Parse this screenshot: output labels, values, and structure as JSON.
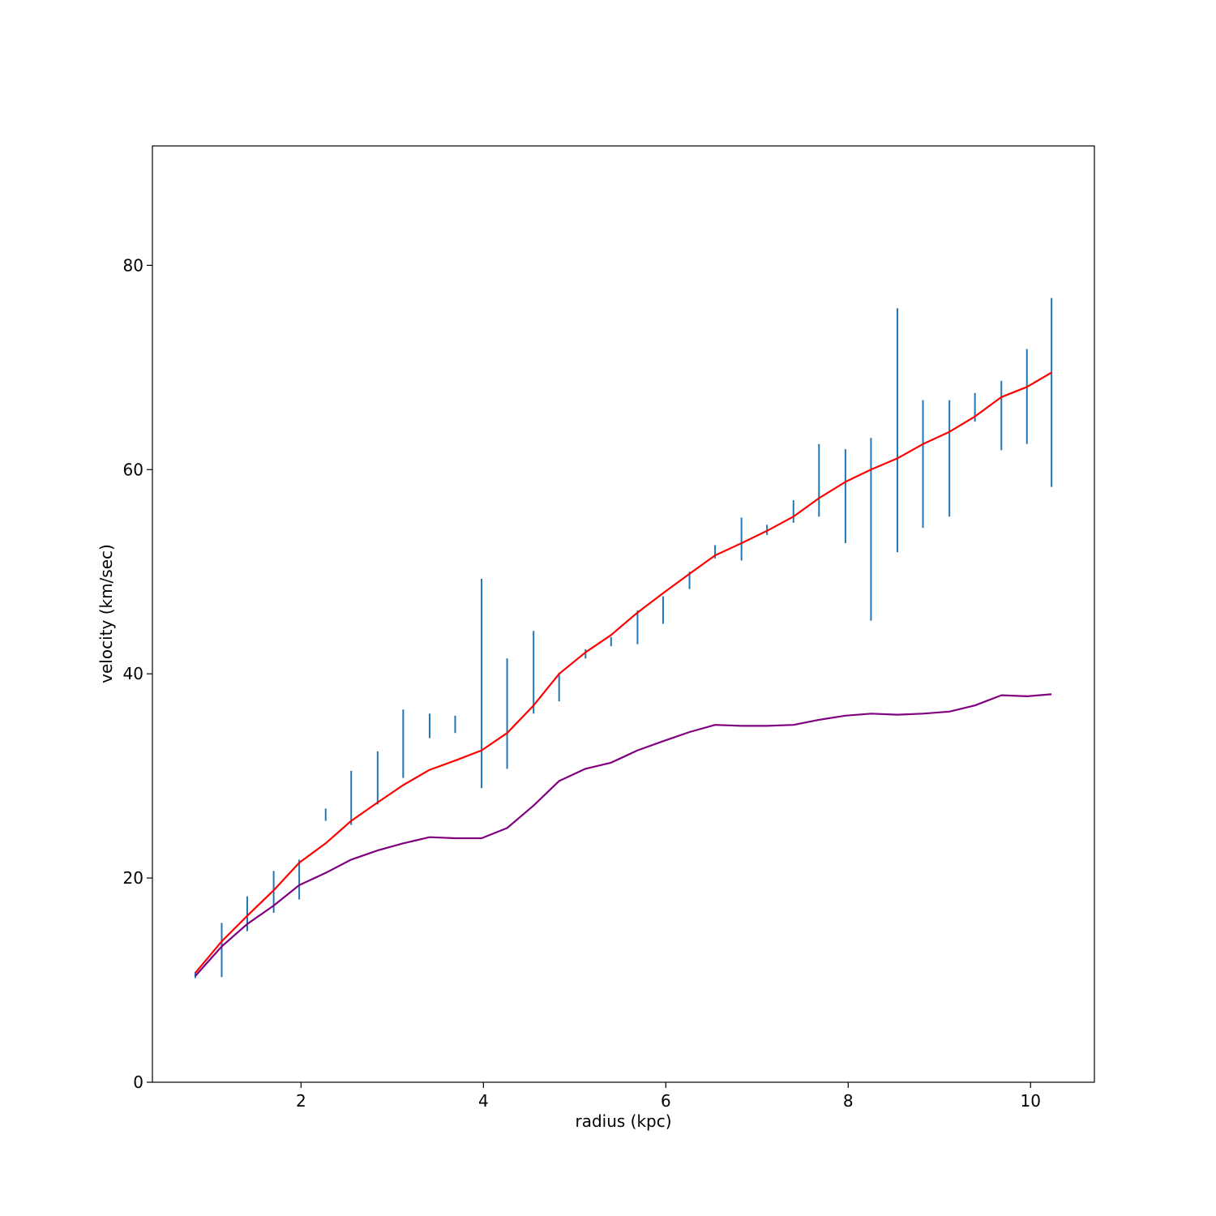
{
  "chart_data": {
    "type": "line",
    "xlabel": "radius (kpc)",
    "ylabel": "velocity (km/sec)",
    "xlim": [
      0.37,
      10.7
    ],
    "ylim": [
      0,
      91.7
    ],
    "xticks": [
      2,
      4,
      6,
      8,
      10
    ],
    "yticks": [
      0,
      20,
      40,
      60,
      80
    ],
    "grid": false,
    "colors": {
      "errorbars": "#1f77b4",
      "model": "#ff0000",
      "baryonic": "#800080",
      "axes": "#000000"
    },
    "errorbars": [
      {
        "x": 0.84,
        "low": 10.2,
        "high": 10.8
      },
      {
        "x": 1.13,
        "low": 10.3,
        "high": 15.6
      },
      {
        "x": 1.41,
        "low": 14.8,
        "high": 18.2
      },
      {
        "x": 1.7,
        "low": 16.6,
        "high": 20.7
      },
      {
        "x": 1.98,
        "low": 17.9,
        "high": 21.8
      },
      {
        "x": 2.27,
        "low": 25.6,
        "high": 26.8
      },
      {
        "x": 2.55,
        "low": 25.2,
        "high": 30.5
      },
      {
        "x": 2.84,
        "low": 27.2,
        "high": 32.4
      },
      {
        "x": 3.12,
        "low": 29.8,
        "high": 36.5
      },
      {
        "x": 3.41,
        "low": 33.7,
        "high": 36.1
      },
      {
        "x": 3.69,
        "low": 34.2,
        "high": 35.9
      },
      {
        "x": 3.98,
        "low": 28.8,
        "high": 49.3
      },
      {
        "x": 4.26,
        "low": 30.7,
        "high": 41.5
      },
      {
        "x": 4.55,
        "low": 36.1,
        "high": 44.2
      },
      {
        "x": 4.83,
        "low": 37.3,
        "high": 40.1
      },
      {
        "x": 5.12,
        "low": 41.5,
        "high": 42.4
      },
      {
        "x": 5.4,
        "low": 42.7,
        "high": 43.6
      },
      {
        "x": 5.69,
        "low": 42.9,
        "high": 46.2
      },
      {
        "x": 5.97,
        "low": 44.9,
        "high": 47.6
      },
      {
        "x": 6.26,
        "low": 48.3,
        "high": 50.0
      },
      {
        "x": 6.54,
        "low": 51.3,
        "high": 52.6
      },
      {
        "x": 6.83,
        "low": 51.1,
        "high": 55.3
      },
      {
        "x": 7.11,
        "low": 53.6,
        "high": 54.6
      },
      {
        "x": 7.4,
        "low": 54.8,
        "high": 57.0
      },
      {
        "x": 7.68,
        "low": 55.4,
        "high": 62.5
      },
      {
        "x": 7.97,
        "low": 52.8,
        "high": 62.0
      },
      {
        "x": 8.25,
        "low": 45.2,
        "high": 63.1
      },
      {
        "x": 8.54,
        "low": 51.9,
        "high": 75.8
      },
      {
        "x": 8.82,
        "low": 54.3,
        "high": 66.8
      },
      {
        "x": 9.11,
        "low": 55.4,
        "high": 66.8
      },
      {
        "x": 9.39,
        "low": 64.7,
        "high": 67.5
      },
      {
        "x": 9.68,
        "low": 61.9,
        "high": 68.7
      },
      {
        "x": 9.96,
        "low": 62.5,
        "high": 71.8
      },
      {
        "x": 10.23,
        "low": 58.3,
        "high": 76.8
      }
    ],
    "series": [
      {
        "x": [
          0.84,
          1.13,
          1.41,
          1.7,
          1.98,
          2.27,
          2.55,
          2.84,
          3.12,
          3.41,
          3.69,
          3.98,
          4.26,
          4.55,
          4.83,
          5.12,
          5.4,
          5.69,
          5.97,
          6.26,
          6.54,
          6.83,
          7.11,
          7.4,
          7.68,
          7.97,
          8.25,
          8.54,
          8.82,
          9.11,
          9.39,
          9.68,
          9.96,
          10.23
        ],
        "values": [
          10.7,
          13.8,
          16.3,
          18.8,
          21.5,
          23.4,
          25.6,
          27.4,
          29.1,
          30.6,
          31.5,
          32.5,
          34.2,
          36.9,
          40.0,
          42.1,
          43.8,
          46.0,
          47.9,
          49.8,
          51.6,
          52.8,
          54.0,
          55.4,
          57.2,
          58.8,
          60.0,
          61.1,
          62.5,
          63.7,
          65.2,
          67.1,
          68.1,
          69.5
        ]
      },
      {
        "x": [
          0.84,
          1.13,
          1.41,
          1.7,
          1.98,
          2.27,
          2.55,
          2.84,
          3.12,
          3.41,
          3.69,
          3.98,
          4.26,
          4.55,
          4.83,
          5.12,
          5.4,
          5.69,
          5.97,
          6.26,
          6.54,
          6.83,
          7.11,
          7.4,
          7.68,
          7.97,
          8.25,
          8.54,
          8.82,
          9.11,
          9.39,
          9.68,
          9.96,
          10.23
        ],
        "values": [
          10.4,
          13.3,
          15.5,
          17.3,
          19.3,
          20.5,
          21.8,
          22.7,
          23.4,
          24.0,
          23.9,
          23.9,
          24.9,
          27.1,
          29.5,
          30.7,
          31.3,
          32.5,
          33.4,
          34.3,
          35.0,
          34.9,
          34.9,
          35.0,
          35.5,
          35.9,
          36.1,
          36.0,
          36.1,
          36.3,
          36.9,
          37.9,
          37.8,
          38.0
        ]
      }
    ]
  }
}
